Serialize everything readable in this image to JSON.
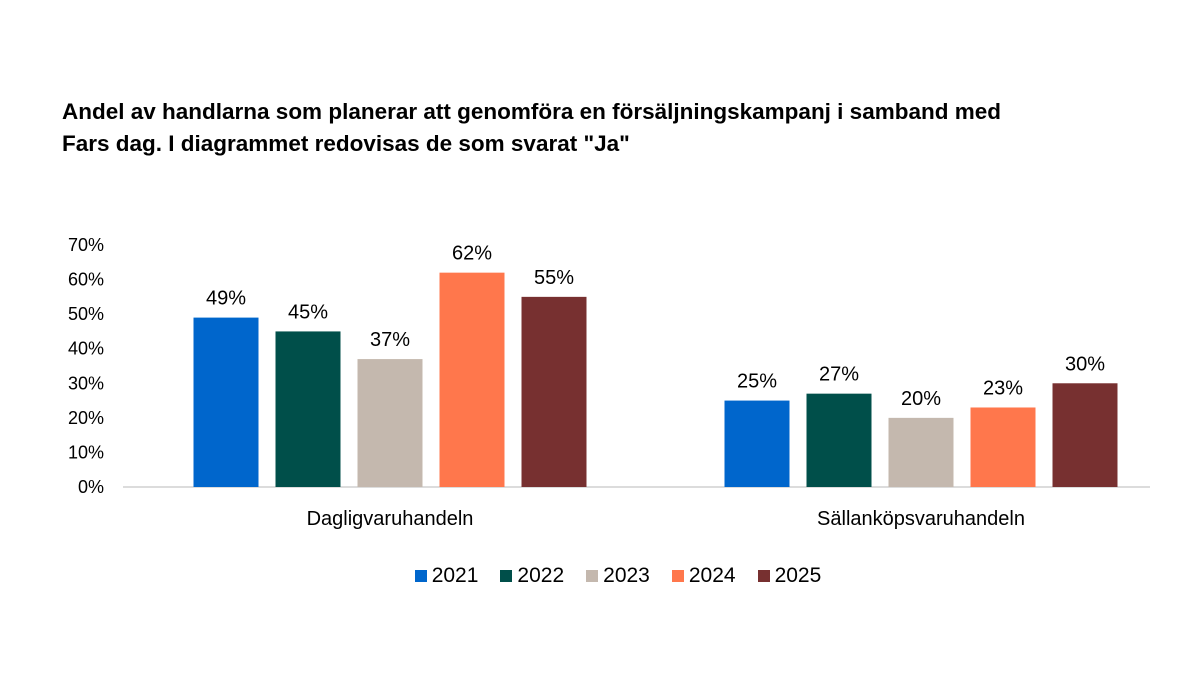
{
  "chart_data": {
    "type": "bar",
    "title": "Andel av handlarna som planerar att genomföra en försäljningskampanj i samband med Fars dag. I diagrammet redovisas de som svarat \"Ja\"",
    "categories": [
      "Dagligvaruhandeln",
      "Sällanköpsvaruhandeln"
    ],
    "series": [
      {
        "name": "2021",
        "color": "#0066cc",
        "values": [
          49,
          25
        ],
        "labels": [
          "49%",
          "25%"
        ]
      },
      {
        "name": "2022",
        "color": "#004f4a",
        "values": [
          45,
          27
        ],
        "labels": [
          "45%",
          "27%"
        ]
      },
      {
        "name": "2023",
        "color": "#c4b8ae",
        "values": [
          37,
          20
        ],
        "labels": [
          "37%",
          "20%"
        ]
      },
      {
        "name": "2024",
        "color": "#ff774c",
        "values": [
          62,
          23
        ],
        "labels": [
          "62%",
          "23%"
        ]
      },
      {
        "name": "2025",
        "color": "#773030",
        "values": [
          55,
          30
        ],
        "labels": [
          "55%",
          "30%"
        ]
      }
    ],
    "yticks": [
      "0%",
      "10%",
      "20%",
      "30%",
      "40%",
      "50%",
      "60%",
      "70%"
    ],
    "ylim": [
      0,
      70
    ],
    "xlabel": "",
    "ylabel": "",
    "grid": false,
    "legend": "bottom"
  }
}
